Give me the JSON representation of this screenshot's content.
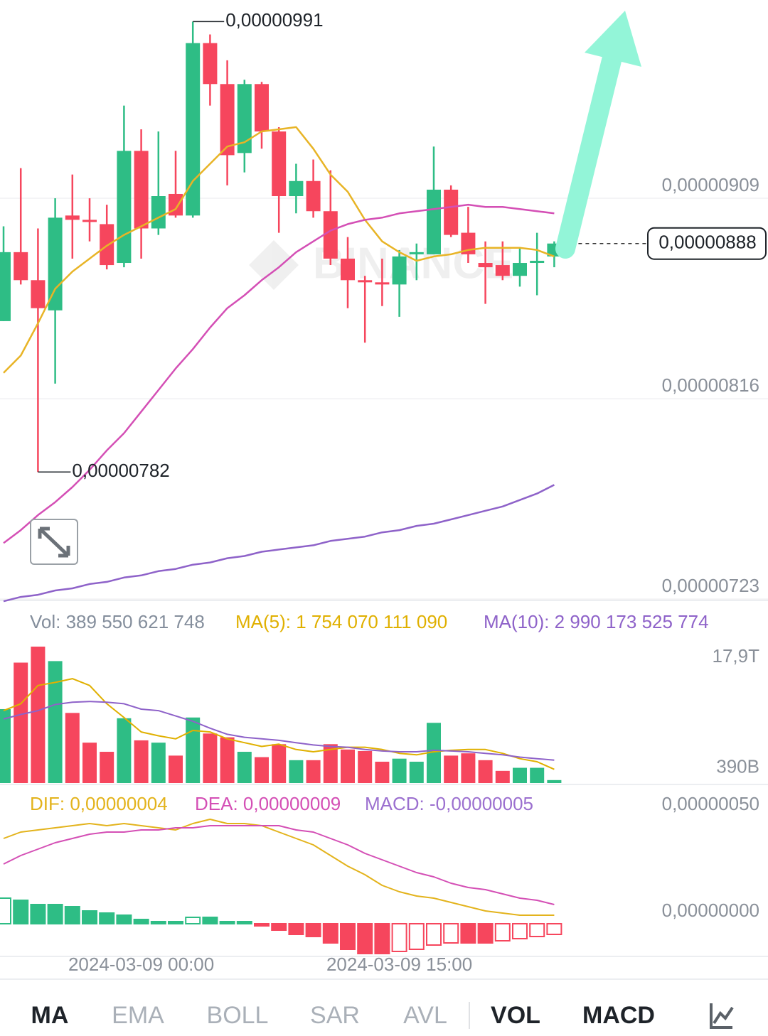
{
  "chart_data": [
    {
      "type": "candlestick",
      "categories": [
        null,
        null,
        null,
        null,
        null,
        null,
        null,
        null,
        "2024-03-09 00:00",
        null,
        null,
        null,
        null,
        null,
        null,
        null,
        null,
        null,
        null,
        null,
        null,
        null,
        null,
        "2024-03-09 15:00",
        null,
        null,
        null,
        null,
        null,
        null,
        null,
        null,
        null
      ],
      "open": [
        8.52e-06,
        8.84e-06,
        8.71e-06,
        8.57e-06,
        9.01e-06,
        8.99e-06,
        8.97e-06,
        8.79e-06,
        9.31e-06,
        8.95e-06,
        9.11e-06,
        9.01e-06,
        9.81e-06,
        9.62e-06,
        9.3e-06,
        9.62e-06,
        9.4e-06,
        9.1e-06,
        9.17e-06,
        9.03e-06,
        8.81e-06,
        8.71e-06,
        8.7e-06,
        8.69e-06,
        8.83e-06,
        8.83e-06,
        9.13e-06,
        8.93e-06,
        8.79e-06,
        8.78e-06,
        8.73e-06,
        8.79e-06,
        8.82e-06
      ],
      "high": [
        8.96e-06,
        9.23e-06,
        8.95e-06,
        9.09e-06,
        9.2e-06,
        9.09e-06,
        9.06e-06,
        9.52e-06,
        9.41e-06,
        9.4e-06,
        9.31e-06,
        9.91e-06,
        9.85e-06,
        9.73e-06,
        9.64e-06,
        9.63e-06,
        9.42e-06,
        9.25e-06,
        9.27e-06,
        9.22e-06,
        8.91e-06,
        8.73e-06,
        8.81e-06,
        8.85e-06,
        8.88e-06,
        9.33e-06,
        9.15e-06,
        9.05e-06,
        8.89e-06,
        8.89e-06,
        8.86e-06,
        8.93e-06,
        8.89e-06
      ],
      "low": [
        8.52e-06,
        8.69e-06,
        7.82e-06,
        8.23e-06,
        8.81e-06,
        8.89e-06,
        8.76e-06,
        8.77e-06,
        8.81e-06,
        8.92e-06,
        9e-06,
        9e-06,
        9.52e-06,
        9.15e-06,
        9.21e-06,
        9.32e-06,
        8.93e-06,
        9.02e-06,
        9e-06,
        8.78e-06,
        8.58e-06,
        8.42e-06,
        8.59e-06,
        8.54e-06,
        8.71e-06,
        8.83e-06,
        8.91e-06,
        8.79e-06,
        8.6e-06,
        8.71e-06,
        8.68e-06,
        8.64e-06,
        8.77e-06
      ],
      "close": [
        8.84e-06,
        8.71e-06,
        8.58e-06,
        9e-06,
        8.99e-06,
        8.98e-06,
        8.78e-06,
        9.31e-06,
        8.95e-06,
        9.1e-06,
        9.01e-06,
        9.81e-06,
        9.62e-06,
        9.29e-06,
        9.62e-06,
        9.4e-06,
        9.1e-06,
        9.17e-06,
        9.03e-06,
        8.81e-06,
        8.71e-06,
        8.7e-06,
        8.69e-06,
        8.82e-06,
        8.84e-06,
        9.13e-06,
        8.92e-06,
        8.83e-06,
        8.77e-06,
        8.73e-06,
        8.79e-06,
        8.8e-06,
        8.88e-06
      ],
      "up_color": "#2ebd85",
      "down_color": "#f6465d",
      "series": [
        {
          "color": "#e8b426",
          "values": [
            8.28e-06,
            8.36e-06,
            8.51e-06,
            8.67e-06,
            8.75e-06,
            8.81e-06,
            8.87e-06,
            8.92e-06,
            8.96e-06,
            9e-06,
            9.04e-06,
            9.17e-06,
            9.25e-06,
            9.33e-06,
            9.35e-06,
            9.4e-06,
            9.41e-06,
            9.42e-06,
            9.32e-06,
            9.2e-06,
            9.12e-06,
            8.99e-06,
            8.89e-06,
            8.84e-06,
            8.8e-06,
            8.82e-06,
            8.83e-06,
            8.85e-06,
            8.86e-06,
            8.86e-06,
            8.86e-06,
            8.85e-06,
            8.82e-06
          ]
        },
        {
          "color": "#d44fb5",
          "values": [
            7.49e-06,
            7.55e-06,
            7.62e-06,
            7.68e-06,
            7.75e-06,
            7.83e-06,
            7.92e-06,
            8e-06,
            8.1e-06,
            8.2e-06,
            8.3e-06,
            8.39e-06,
            8.49e-06,
            8.58e-06,
            8.64e-06,
            8.71e-06,
            8.77e-06,
            8.84e-06,
            8.89e-06,
            8.94e-06,
            8.97e-06,
            8.99e-06,
            9e-06,
            9.02e-06,
            9.03e-06,
            9.04e-06,
            9.05e-06,
            9.06e-06,
            9.05e-06,
            9.05e-06,
            9.04e-06,
            9.03e-06,
            9.02e-06
          ]
        },
        {
          "color": "#8e62c9",
          "values": [
            7.22e-06,
            7.24e-06,
            7.25e-06,
            7.27e-06,
            7.28e-06,
            7.3e-06,
            7.31e-06,
            7.33e-06,
            7.34e-06,
            7.36e-06,
            7.37e-06,
            7.39e-06,
            7.4e-06,
            7.42e-06,
            7.43e-06,
            7.45e-06,
            7.46e-06,
            7.47e-06,
            7.48e-06,
            7.5e-06,
            7.51e-06,
            7.52e-06,
            7.54e-06,
            7.55e-06,
            7.57e-06,
            7.58e-06,
            7.6e-06,
            7.62e-06,
            7.64e-06,
            7.66e-06,
            7.69e-06,
            7.72e-06,
            7.76e-06
          ]
        }
      ],
      "ylim": [
        7.224e-06,
        1.001e-05
      ],
      "yticks": [
        {
          "value": 9.09e-06,
          "label": "0,00000909"
        },
        {
          "value": 8.16e-06,
          "label": "0,00000816"
        },
        {
          "value": 7.23e-06,
          "label": "0,00000723"
        }
      ],
      "grid": true,
      "high_label": "0,00000991",
      "low_label": "0,00000782",
      "last_price_label": "0,00000888",
      "watermark": "BINANCE"
    },
    {
      "type": "volume",
      "name": "Vol: 389 550 621 748",
      "values": [
        9700000000000.0,
        15800000000000.0,
        17900000000000.0,
        16000000000000.0,
        9200000000000.0,
        5300000000000.0,
        4100000000000.0,
        8500000000000.0,
        5600000000000.0,
        5300000000000.0,
        3600000000000.0,
        8600000000000.0,
        6500000000000.0,
        6000000000000.0,
        4100000000000.0,
        3400000000000.0,
        5100000000000.0,
        3000000000000.0,
        3000000000000.0,
        5100000000000.0,
        4400000000000.0,
        4200000000000.0,
        2800000000000.0,
        3200000000000.0,
        2800000000000.0,
        7900000000000.0,
        3600000000000.0,
        3900000000000.0,
        3000000000000.0,
        1600000000000.0,
        2000000000000.0,
        2000000000000.0,
        389550621748
      ],
      "series": [
        {
          "name": "MA(5): 1 754 070 111 090",
          "color": "#e0b000",
          "values": [
            9500000000000.0,
            10400000000000.0,
            12800000000000.0,
            13200000000000.0,
            13700000000000.0,
            12800000000000.0,
            10400000000000.0,
            8600000000000.0,
            6700000000000.0,
            6200000000000.0,
            5800000000000.0,
            6900000000000.0,
            6700000000000.0,
            5800000000000.0,
            5300000000000.0,
            4800000000000.0,
            5100000000000.0,
            4400000000000.0,
            4100000000000.0,
            4400000000000.0,
            4700000000000.0,
            4700000000000.0,
            4400000000000.0,
            3900000000000.0,
            3700000000000.0,
            4100000000000.0,
            4300000000000.0,
            4400000000000.0,
            4400000000000.0,
            3900000000000.0,
            3200000000000.0,
            2800000000000.0,
            1800000000000.0
          ]
        },
        {
          "name": "MA(10): 2 990 173 525 774",
          "color": "#8e62c9",
          "values": [
            8400000000000.0,
            9000000000000.0,
            9500000000000.0,
            10300000000000.0,
            10600000000000.0,
            10700000000000.0,
            10600000000000.0,
            10400000000000.0,
            9700000000000.0,
            9500000000000.0,
            8800000000000.0,
            8100000000000.0,
            7200000000000.0,
            6400000000000.0,
            6000000000000.0,
            5800000000000.0,
            5600000000000.0,
            5300000000000.0,
            5000000000000.0,
            4800000000000.0,
            4700000000000.0,
            4400000000000.0,
            4200000000000.0,
            4100000000000.0,
            4100000000000.0,
            4300000000000.0,
            4200000000000.0,
            4100000000000.0,
            3900000000000.0,
            3700000000000.0,
            3400000000000.0,
            3200000000000.0,
            3000000000000.0
          ]
        }
      ],
      "ylim": [
        0,
        17900000000000.0
      ],
      "yticks": [
        {
          "value": 17900000000000.0,
          "label": "17,9T"
        },
        {
          "value": 390000000000.0,
          "label": "390B"
        }
      ]
    },
    {
      "type": "macd",
      "series": [
        {
          "name": "DIF: 0,00000004",
          "color": "#e3b31c",
          "values": [
            4e-07,
            4.3e-07,
            4.4e-07,
            4.5e-07,
            4.6e-07,
            4.7e-07,
            4.6e-07,
            4.7e-07,
            4.6e-07,
            4.5e-07,
            4.4e-07,
            4.7e-07,
            4.9e-07,
            4.7e-07,
            4.7e-07,
            4.6e-07,
            4.3e-07,
            4e-07,
            3.7e-07,
            3.2e-07,
            2.7e-07,
            2.3e-07,
            1.8e-07,
            1.5e-07,
            1.3e-07,
            1.2e-07,
            1e-07,
            8e-08,
            6e-08,
            5e-08,
            4e-08,
            4e-08,
            4e-08
          ]
        },
        {
          "name": "DEA: 0,00000009",
          "color": "#d44fb5",
          "values": [
            2.8e-07,
            3.2e-07,
            3.5e-07,
            3.8e-07,
            4e-07,
            4.2e-07,
            4.3e-07,
            4.3e-07,
            4.4e-07,
            4.4e-07,
            4.5e-07,
            4.5e-07,
            4.6e-07,
            4.6e-07,
            4.6e-07,
            4.6e-07,
            4.6e-07,
            4.4e-07,
            4.3e-07,
            4e-07,
            3.7e-07,
            3.3e-07,
            3e-07,
            2.7e-07,
            2.4e-07,
            2.2e-07,
            1.9e-07,
            1.7e-07,
            1.6e-07,
            1.4e-07,
            1.2e-07,
            1.1e-07,
            9e-08
          ]
        }
      ],
      "macd": {
        "name": "MACD: -0,00000005",
        "color": "#9b6fcf",
        "values": [
          1.2e-07,
          1.1e-07,
          9e-08,
          9e-08,
          8e-08,
          6e-08,
          5e-08,
          4e-08,
          2e-08,
          1e-08,
          1e-08,
          3e-08,
          3e-08,
          1e-08,
          1e-08,
          -1e-08,
          -3e-08,
          -5e-08,
          -6e-08,
          -9e-08,
          -1.2e-07,
          -1.4e-07,
          -1.4e-07,
          -1.3e-07,
          -1.2e-07,
          -1e-07,
          -9e-08,
          -9e-08,
          -9e-08,
          -8e-08,
          -7e-08,
          -6e-08,
          -5e-08
        ]
      },
      "ylim": [
        -1.5e-07,
        6.5e-07
      ],
      "yticks": [
        {
          "value": 5e-07,
          "label": "0,00000050"
        },
        {
          "value": 0,
          "label": "0,00000000"
        }
      ]
    }
  ],
  "toolbar": {
    "items": [
      {
        "label": "MA",
        "active": true
      },
      {
        "label": "EMA",
        "active": false
      },
      {
        "label": "BOLL",
        "active": false
      },
      {
        "label": "SAR",
        "active": false
      },
      {
        "label": "AVL",
        "active": false
      },
      {
        "label": "VOL",
        "active": true
      },
      {
        "label": "MACD",
        "active": true
      }
    ]
  }
}
